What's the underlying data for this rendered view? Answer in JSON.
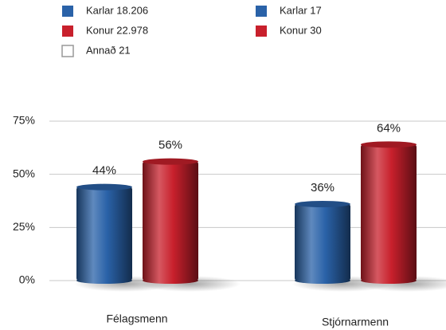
{
  "chart_data": {
    "type": "bar",
    "legend": [
      {
        "label": "Karlar 18.206",
        "color": "#2a62a8"
      },
      {
        "label": "Konur 22.978",
        "color": "#c8202c"
      },
      {
        "label": "Annað 21",
        "color": "#ffffff"
      },
      {
        "label": "Karlar 17",
        "color": "#2a62a8"
      },
      {
        "label": "Konur 30",
        "color": "#c8202c"
      }
    ],
    "categories": [
      "Félagsmenn",
      "Stjórnarmenn"
    ],
    "series": [
      {
        "color": "#2a62a8",
        "values": [
          44,
          36
        ],
        "value_labels": [
          "44%",
          "36%"
        ]
      },
      {
        "color": "#c8202c",
        "values": [
          56,
          64
        ],
        "value_labels": [
          "56%",
          "64%"
        ]
      }
    ],
    "ylim": [
      0,
      75
    ],
    "yticks": [
      {
        "value": 0,
        "label": "0%"
      },
      {
        "value": 25,
        "label": "25%"
      },
      {
        "value": 50,
        "label": "50%"
      },
      {
        "value": 75,
        "label": "75%"
      }
    ],
    "grid": true
  }
}
